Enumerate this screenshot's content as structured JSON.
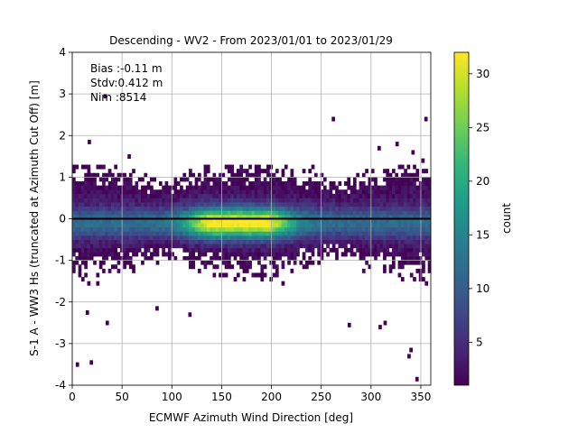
{
  "chart_data": {
    "type": "heatmap",
    "title": "Descending - WV2 - From 2023/01/01 to 2023/01/29",
    "xlabel": "ECMWF Azimuth Wind Direction [deg]",
    "ylabel": "S-1 A - WW3 Hs (truncated at Azimuth Cut Off) [m]",
    "xlim": [
      0,
      360
    ],
    "ylim": [
      -4,
      4
    ],
    "x_ticks": [
      "0",
      "50",
      "100",
      "150",
      "200",
      "250",
      "300",
      "350"
    ],
    "y_ticks": [
      "-4",
      "-3",
      "-2",
      "-1",
      "0",
      "1",
      "2",
      "3",
      "4"
    ],
    "grid": true,
    "colormap": "viridis",
    "colorbar": {
      "label": "count",
      "range": [
        1,
        32
      ],
      "ticks": [
        "5",
        "10",
        "15",
        "20",
        "25",
        "30"
      ]
    },
    "stats": [
      {
        "label": "Bias :",
        "value": "-0.11 m"
      },
      {
        "label": "Stdv:",
        "value": "0.412 m"
      },
      {
        "label": "Nim :",
        "value": "8514"
      }
    ],
    "zero_line": 0,
    "bin_size": {
      "x": 3,
      "y": 0.1
    },
    "density_model": {
      "total_count": 8514,
      "center": 0.0,
      "core_spread": 0.25,
      "secondary_peaks_deg": [
        145,
        190
      ],
      "max_count": 32
    },
    "outliers": [
      {
        "x": 5,
        "y": -3.5
      },
      {
        "x": 19,
        "y": -3.45
      },
      {
        "x": 35,
        "y": -2.5
      },
      {
        "x": 15,
        "y": -2.25
      },
      {
        "x": 85,
        "y": -2.15
      },
      {
        "x": 118,
        "y": -2.3
      },
      {
        "x": 17,
        "y": 1.85
      },
      {
        "x": 57,
        "y": 1.5
      },
      {
        "x": 262,
        "y": 2.4
      },
      {
        "x": 355,
        "y": 2.4
      },
      {
        "x": 340,
        "y": -3.15
      },
      {
        "x": 338,
        "y": -3.3
      },
      {
        "x": 346,
        "y": -3.85
      },
      {
        "x": 278,
        "y": -2.55
      },
      {
        "x": 309,
        "y": -2.6
      },
      {
        "x": 314,
        "y": -2.5
      },
      {
        "x": 326,
        "y": 1.8
      },
      {
        "x": 308,
        "y": 1.7
      },
      {
        "x": 342,
        "y": 1.6
      },
      {
        "x": 352,
        "y": 1.4
      },
      {
        "x": 33,
        "y": 2.95
      }
    ]
  }
}
